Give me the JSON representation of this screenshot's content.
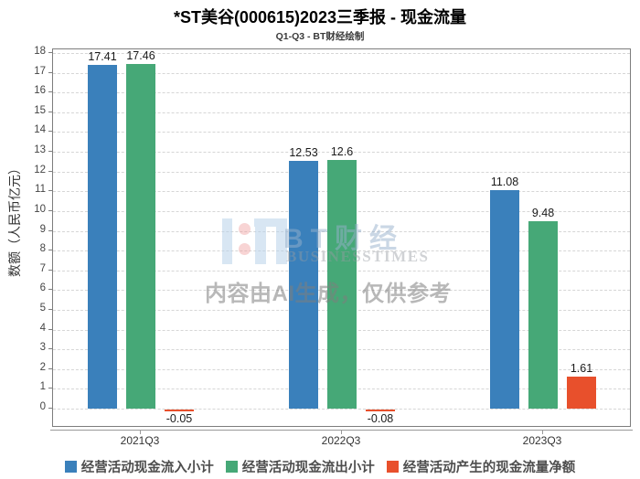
{
  "header": {
    "title": "*ST美谷(000615)2023三季报 - 现金流量",
    "subtitle": "Q1-Q3 - BT财经绘制"
  },
  "watermark": {
    "brand_cn": "BT财经",
    "brand_en": "BUSINESSTIMES",
    "disclaimer": "内容由AI生成，仅供参考"
  },
  "chart_data": {
    "type": "bar",
    "title": "*ST美谷(000615)2023三季报 - 现金流量",
    "subtitle": "Q1-Q3 - BT财经绘制",
    "categories": [
      "2021Q3",
      "2022Q3",
      "2023Q3"
    ],
    "series": [
      {
        "name": "经营活动现金流入小计",
        "color": "#3a80bb",
        "values": [
          17.41,
          12.53,
          11.08
        ]
      },
      {
        "name": "经营活动现金流出小计",
        "color": "#46a877",
        "values": [
          17.46,
          12.6,
          9.48
        ]
      },
      {
        "name": "经营活动产生的现金流量净额",
        "color": "#e8502c",
        "values": [
          -0.05,
          -0.08,
          1.61
        ]
      }
    ],
    "xlabel": "",
    "ylabel": "数额（人民币亿元）",
    "ylim": [
      -1,
      18
    ],
    "ytick_interval": 1,
    "grid": true,
    "legend_position": "bottom",
    "colors": {
      "grid": "#d6d6d6",
      "axis": "#7d7d7d",
      "tick_text": "#444444",
      "value_label_text": "#1a1a1a"
    }
  }
}
